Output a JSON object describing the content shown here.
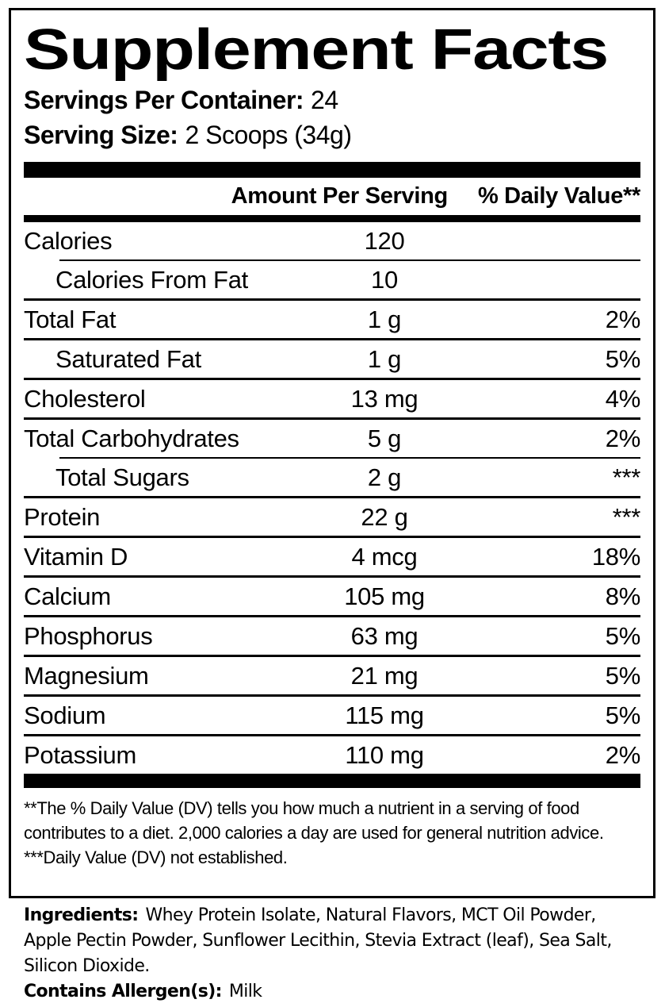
{
  "title": "Supplement Facts",
  "servings_per_container": {
    "label": "Servings Per Container:",
    "value": "24"
  },
  "serving_size": {
    "label": "Serving Size:",
    "value": "2 Scoops (34g)"
  },
  "table": {
    "headers": {
      "amount": "Amount Per Serving",
      "dv": "% Daily Value**"
    },
    "rows": [
      {
        "name": "Calories",
        "amount": "120",
        "dv": "",
        "indent": false,
        "sep": "indented"
      },
      {
        "name": "Calories From Fat",
        "amount": "10",
        "dv": "",
        "indent": true,
        "sep": "full"
      },
      {
        "name": "Total Fat",
        "amount": "1 g",
        "dv": "2%",
        "indent": false,
        "sep": "full"
      },
      {
        "name": "Saturated Fat",
        "amount": "1 g",
        "dv": "5%",
        "indent": true,
        "sep": "full"
      },
      {
        "name": "Cholesterol",
        "amount": "13 mg",
        "dv": "4%",
        "indent": false,
        "sep": "full"
      },
      {
        "name": "Total Carbohydrates",
        "amount": "5 g",
        "dv": "2%",
        "indent": false,
        "sep": "indented"
      },
      {
        "name": "Total Sugars",
        "amount": "2 g",
        "dv": "***",
        "indent": true,
        "sep": "full"
      },
      {
        "name": "Protein",
        "amount": "22 g",
        "dv": "***",
        "indent": false,
        "sep": "full"
      },
      {
        "name": "Vitamin D",
        "amount": "4 mcg",
        "dv": "18%",
        "indent": false,
        "sep": "full"
      },
      {
        "name": "Calcium",
        "amount": "105 mg",
        "dv": "8%",
        "indent": false,
        "sep": "full"
      },
      {
        "name": "Phosphorus",
        "amount": "63 mg",
        "dv": "5%",
        "indent": false,
        "sep": "full"
      },
      {
        "name": "Magnesium",
        "amount": "21 mg",
        "dv": "5%",
        "indent": false,
        "sep": "full"
      },
      {
        "name": "Sodium",
        "amount": "115 mg",
        "dv": "5%",
        "indent": false,
        "sep": "full"
      },
      {
        "name": "Potassium",
        "amount": "110 mg",
        "dv": "2%",
        "indent": false,
        "sep": "none"
      }
    ]
  },
  "footnotes": {
    "dv_note": "**The % Daily Value (DV) tells you how much a nutrient in a serving of food contributes to a diet. 2,000 calories a day are used for general nutrition advice.",
    "not_established_note": "***Daily Value (DV) not established."
  },
  "ingredients": {
    "label": "Ingredients:",
    "value": "Whey Protein Isolate, Natural Flavors, MCT Oil Powder, Apple Pectin Powder, Sunflower Lecithin, Stevia Extract (leaf), Sea Salt, Silicon Dioxide."
  },
  "allergens": {
    "label": "Contains Allergen(s):",
    "value": "Milk"
  },
  "colors": {
    "text": "#000000",
    "background": "#ffffff"
  }
}
